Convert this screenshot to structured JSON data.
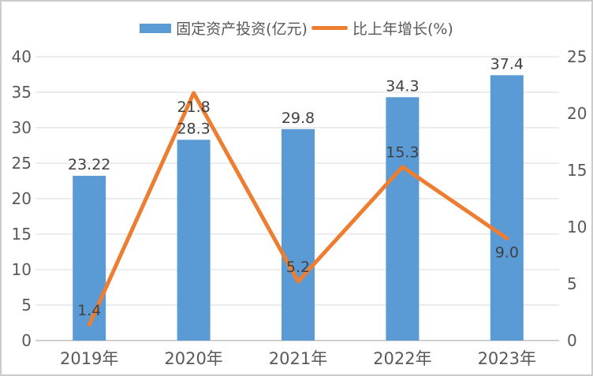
{
  "chart_data": {
    "type": "bar+line",
    "title": "",
    "categories": [
      "2019年",
      "2020年",
      "2021年",
      "2022年",
      "2023年"
    ],
    "series": [
      {
        "name": "固定资产投资(亿元)",
        "type": "bar",
        "axis": "left",
        "color": "#5B9BD5",
        "values": [
          23.22,
          28.3,
          29.8,
          34.3,
          37.4
        ],
        "labels": [
          "23.22",
          "28.3",
          "29.8",
          "34.3",
          "37.4"
        ]
      },
      {
        "name": "比上年增长(%)",
        "type": "line",
        "axis": "right",
        "color": "#ED7D31",
        "values": [
          1.4,
          21.8,
          5.2,
          15.3,
          9.0
        ],
        "labels": [
          "1.4",
          "21.8",
          "5.2",
          "15.3",
          "9.0"
        ],
        "label_pos": [
          "above",
          "below",
          "above",
          "above",
          "below"
        ]
      }
    ],
    "left_axis": {
      "min": 0,
      "max": 40,
      "step": 5,
      "ticks": [
        "0",
        "5",
        "10",
        "15",
        "20",
        "25",
        "30",
        "35",
        "40"
      ]
    },
    "right_axis": {
      "min": 0,
      "max": 25,
      "step": 5,
      "ticks": [
        "0",
        "5",
        "10",
        "15",
        "20",
        "25"
      ]
    },
    "grid": true,
    "legend_position": "top",
    "colors": {
      "grid": "#D9D9D9",
      "axis_line": "#BFBFBF",
      "text": "#595959",
      "label_text": "#404040",
      "background": "#FFFFFF",
      "border": "#CCCCCC"
    }
  }
}
